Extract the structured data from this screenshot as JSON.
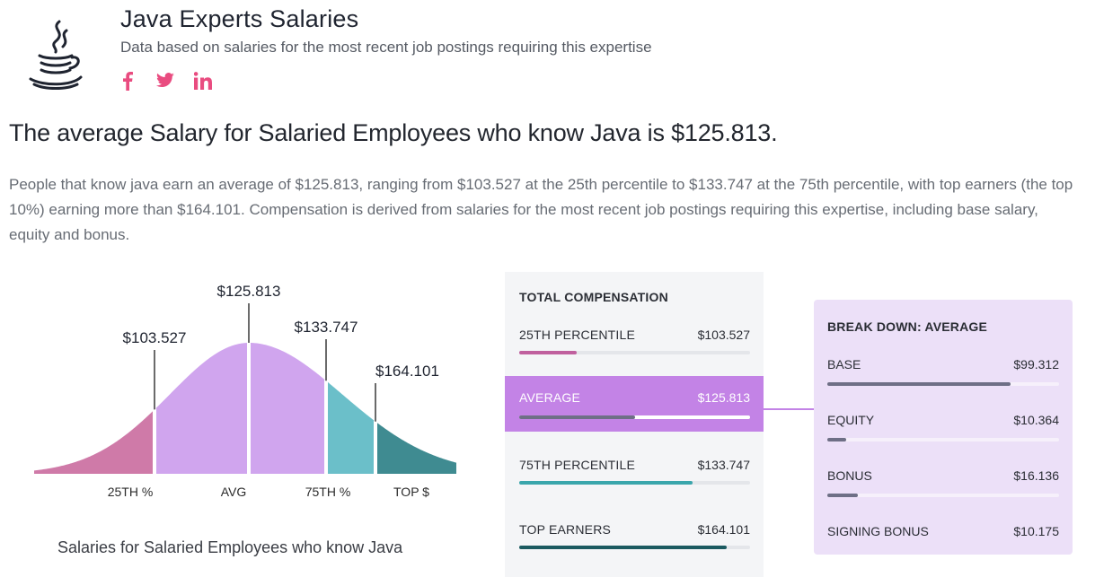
{
  "header": {
    "title": "Java Experts Salaries",
    "subtitle": "Data based on salaries for the most recent job postings requiring this expertise",
    "logo_icon": "java-coffee-cup-icon",
    "social": [
      "facebook-icon",
      "twitter-icon",
      "linkedin-icon"
    ],
    "social_color": "#e94c80"
  },
  "headline": "The average Salary for Salaried Employees who know Java is $125.813.",
  "paragraph": "People that know java earn an average of $125.813, ranging from $103.527 at the 25th percentile to $133.747 at the 75th percentile, with top earners (the top 10%) earning more than $164.101. Compensation is derived from salaries for the most recent job postings requiring this expertise, including base salary, equity and bonus.",
  "chart_data": {
    "type": "area",
    "caption": "Salaries for Salaried Employees who know Java",
    "markers": [
      {
        "label": "$103.527",
        "axis": "25TH %",
        "value": 103527
      },
      {
        "label": "$125.813",
        "axis": "AVG",
        "value": 125813
      },
      {
        "label": "$133.747",
        "axis": "75TH %",
        "value": 133747
      },
      {
        "label": "$164.101",
        "axis": "TOP $",
        "value": 164101
      }
    ],
    "colors": {
      "p25": "#cf7aa8",
      "avg": "#d0a5ee",
      "p75": "#6bbfc9",
      "top": "#3f8b91"
    }
  },
  "total_compensation": {
    "title": "TOTAL COMPENSATION",
    "rows": [
      {
        "label": "25TH PERCENTILE",
        "value": "$103.527",
        "fill": 0.25,
        "color": "#c0609e"
      },
      {
        "label": "AVERAGE",
        "value": "$125.813",
        "fill": 0.5,
        "color": "#6e6f86"
      },
      {
        "label": "75TH PERCENTILE",
        "value": "$133.747",
        "fill": 0.75,
        "color": "#3aa6ac"
      },
      {
        "label": "TOP EARNERS",
        "value": "$164.101",
        "fill": 0.9,
        "color": "#1b5a60"
      }
    ],
    "active_color": "#c383e6"
  },
  "breakdown": {
    "title": "BREAK DOWN: AVERAGE",
    "rows": [
      {
        "label": "BASE",
        "value": "$99.312",
        "fill": 0.79
      },
      {
        "label": "EQUITY",
        "value": "$10.364",
        "fill": 0.08
      },
      {
        "label": "BONUS",
        "value": "$16.136",
        "fill": 0.13
      },
      {
        "label": "SIGNING BONUS",
        "value": "$10.175"
      }
    ]
  }
}
